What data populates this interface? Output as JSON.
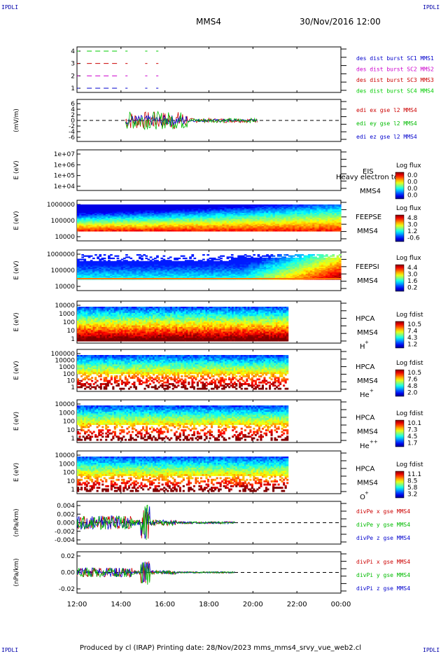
{
  "header": {
    "corner_label": "IPDLI",
    "spacecraft": "MMS4",
    "date": "30/Nov/2016 12:00"
  },
  "footer": {
    "text": "Produced by cl (IRAP)   Printing date: 28/Nov/2023   mms_mms4_srvy_vue_web2.cl"
  },
  "colors": {
    "mms1": "#0000cc",
    "mms2": "#cc00cc",
    "mms3": "#cc0000",
    "mms4": "#00cc00",
    "x": "#cc0000",
    "y": "#00bb00",
    "z": "#0000cc"
  },
  "chart_data": [
    {
      "type": "line",
      "panel": "burst",
      "yticks": [
        "1",
        "2",
        "3",
        "4"
      ],
      "ylim": [
        0.5,
        4.5
      ],
      "legend": [
        "des dist burst SC1 MMS1",
        "des dist burst SC2 MMS2",
        "des dist burst SC3 MMS3",
        "des dist burst SC4 MMS4"
      ],
      "series": [
        {
          "name": "des dist burst SC1 MMS1",
          "level": 1,
          "intervals_hours": [
            [
              12.0,
              12.1
            ],
            [
              12.45,
              13.9
            ],
            [
              14.2,
              14.3
            ],
            [
              15.1,
              15.2
            ],
            [
              15.6,
              15.7
            ]
          ]
        },
        {
          "name": "des dist burst SC2 MMS2",
          "level": 2,
          "intervals_hours": [
            [
              12.0,
              12.1
            ],
            [
              12.45,
              13.9
            ],
            [
              14.2,
              14.3
            ],
            [
              15.1,
              15.2
            ],
            [
              15.6,
              15.7
            ]
          ]
        },
        {
          "name": "des dist burst SC3 MMS3",
          "level": 3,
          "intervals_hours": [
            [
              12.0,
              12.1
            ],
            [
              12.45,
              13.9
            ],
            [
              14.2,
              14.3
            ],
            [
              15.1,
              15.2
            ],
            [
              15.6,
              15.7
            ]
          ]
        },
        {
          "name": "des dist burst SC4 MMS4",
          "level": 4,
          "intervals_hours": [
            [
              12.0,
              12.1
            ],
            [
              12.45,
              13.9
            ],
            [
              14.2,
              14.3
            ],
            [
              15.1,
              15.2
            ],
            [
              15.6,
              15.7
            ]
          ]
        }
      ]
    },
    {
      "type": "line",
      "panel": "edi",
      "ylabel": "(mV/m)",
      "yticks": [
        "-6",
        "-4",
        "-2",
        "0",
        "2",
        "4",
        "6"
      ],
      "ylim": [
        -6.5,
        6.5
      ],
      "time_range_hours": [
        14.2,
        20.2
      ],
      "legend": [
        "edi ex gse l2 MMS4",
        "edi ey gse l2 MMS4",
        "edi ez gse l2 MMS4"
      ]
    },
    {
      "type": "heatmap",
      "panel": "eis",
      "ylabel": "E (eV)",
      "yticks": [
        "1e+04",
        "1e+05",
        "1e+06",
        "1e+07"
      ],
      "instrument": [
        "EIS",
        "MMS4"
      ],
      "overlay_text": "Heavy electron to",
      "cbar_title": "Log flux",
      "cbar_ticks": [
        "0.0",
        "0.0",
        "0.0",
        "0.0"
      ],
      "empty": true
    },
    {
      "type": "heatmap",
      "panel": "feepse",
      "ylabel": "E (eV)",
      "yticks": [
        "10000",
        "100000",
        "1000000"
      ],
      "instrument": [
        "FEEPSE",
        "MMS4"
      ],
      "cbar_title": "Log flux",
      "cbar_ticks": [
        "4.8",
        "3.0",
        "1.2",
        "-0.6"
      ],
      "time_range_hours": [
        12.0,
        24.0
      ]
    },
    {
      "type": "heatmap",
      "panel": "feepsi",
      "ylabel": "E (eV)",
      "yticks": [
        "10000",
        "100000",
        "1000000"
      ],
      "instrument": [
        "FEEPSI",
        "MMS4"
      ],
      "cbar_title": "Log flux",
      "cbar_ticks": [
        "4.4",
        "3.0",
        "1.6",
        "0.2"
      ],
      "time_range_hours": [
        12.0,
        24.0
      ]
    },
    {
      "type": "heatmap",
      "panel": "hpca_h",
      "ylabel": "E (eV)",
      "yticks": [
        "1",
        "10",
        "100",
        "1000",
        "10000"
      ],
      "instrument": [
        "HPCA",
        "MMS4"
      ],
      "species": "H",
      "species_charge": "+",
      "cbar_title": "Log fdist",
      "cbar_ticks": [
        "10.5",
        "7.4",
        "4.3",
        "1.2"
      ],
      "time_range_hours": [
        12.0,
        21.6
      ]
    },
    {
      "type": "heatmap",
      "panel": "hpca_he1",
      "ylabel": "E (eV)",
      "yticks": [
        "1",
        "10",
        "100",
        "1000",
        "10000",
        "100000"
      ],
      "instrument": [
        "HPCA",
        "MMS4"
      ],
      "species": "He",
      "species_charge": "+",
      "cbar_title": "Log fdist",
      "cbar_ticks": [
        "10.5",
        "7.6",
        "4.8",
        "2.0"
      ],
      "time_range_hours": [
        12.0,
        21.6
      ]
    },
    {
      "type": "heatmap",
      "panel": "hpca_he2",
      "ylabel": "E (eV)",
      "yticks": [
        "1",
        "10",
        "100",
        "1000",
        "10000"
      ],
      "instrument": [
        "HPCA",
        "MMS4"
      ],
      "species": "He",
      "species_charge": "++",
      "cbar_title": "Log fdist",
      "cbar_ticks": [
        "10.1",
        "7.3",
        "4.5",
        "1.7"
      ],
      "time_range_hours": [
        12.0,
        21.6
      ]
    },
    {
      "type": "heatmap",
      "panel": "hpca_o",
      "ylabel": "E (eV)",
      "yticks": [
        "1",
        "10",
        "100",
        "1000",
        "10000"
      ],
      "instrument": [
        "HPCA",
        "MMS4"
      ],
      "species": "O",
      "species_charge": "+",
      "cbar_title": "Log fdist",
      "cbar_ticks": [
        "11.1",
        "8.5",
        "5.8",
        "3.2"
      ],
      "time_range_hours": [
        12.0,
        21.6
      ]
    },
    {
      "type": "line",
      "panel": "divpe",
      "ylabel": "(nPa/km)",
      "yticks": [
        "-0.004",
        "-0.002",
        "0.000",
        "0.002",
        "0.004"
      ],
      "ylim": [
        -0.0045,
        0.0045
      ],
      "time_range_hours": [
        12.0,
        19.2
      ],
      "legend": [
        "divPe x gse MMS4",
        "divPe y gse MMS4",
        "divPe z gse MMS4"
      ]
    },
    {
      "type": "line",
      "panel": "divpi",
      "ylabel": "(nPa/km)",
      "yticks": [
        "-0.02",
        "0.00",
        "0.02"
      ],
      "ylim": [
        -0.03,
        0.03
      ],
      "time_range_hours": [
        12.0,
        19.2
      ],
      "legend": [
        "divPi x gse MMS4",
        "divPi y gse MMS4",
        "divPi z gse MMS4"
      ]
    }
  ],
  "xaxis": {
    "ticks": [
      "12:00",
      "14:00",
      "16:00",
      "18:00",
      "20:00",
      "22:00",
      "00:00"
    ],
    "range_hours": [
      12,
      24
    ]
  }
}
